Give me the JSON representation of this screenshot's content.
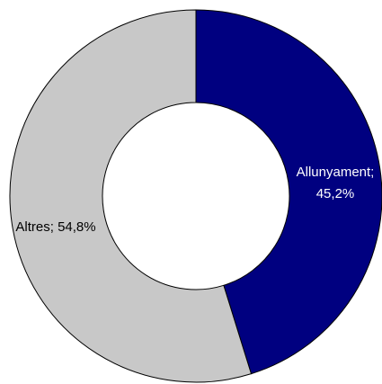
{
  "chart_data": {
    "type": "pie",
    "variant": "donut",
    "title": "",
    "legend": "none",
    "slices": [
      {
        "label": "Allunyament; 45,2%",
        "category": "Allunyament",
        "value": 45.2,
        "color": "#000080",
        "label_color": "#ffffff"
      },
      {
        "label": "Altres; 54,8%",
        "category": "Altres",
        "value": 54.8,
        "color": "#c8c8c8",
        "label_color": "#000000"
      }
    ],
    "slice_border_color": "#000000",
    "background": "#ffffff"
  }
}
